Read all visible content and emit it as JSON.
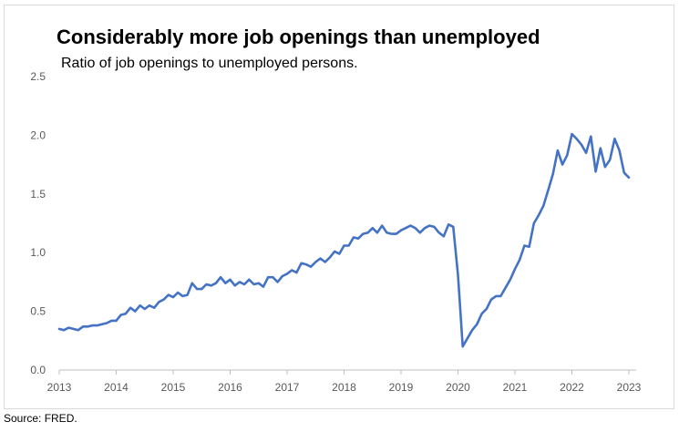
{
  "chart_data": {
    "type": "line",
    "title": "Considerably more job openings than unemployed",
    "subtitle": "Ratio of job openings to unemployed persons.",
    "source": "Source: FRED.",
    "xlabel": "",
    "ylabel": "",
    "ylim": [
      0,
      2.5
    ],
    "yticks": [
      "0.0",
      "0.5",
      "1.0",
      "1.5",
      "2.0",
      "2.5"
    ],
    "xticks": [
      "2013",
      "2014",
      "2015",
      "2016",
      "2017",
      "2018",
      "2019",
      "2020",
      "2021",
      "2022",
      "2023"
    ],
    "grid": false,
    "line_color": "#4472c4",
    "x": [
      2013.0,
      2013.083,
      2013.167,
      2013.25,
      2013.333,
      2013.417,
      2013.5,
      2013.583,
      2013.667,
      2013.75,
      2013.833,
      2013.917,
      2014.0,
      2014.083,
      2014.167,
      2014.25,
      2014.333,
      2014.417,
      2014.5,
      2014.583,
      2014.667,
      2014.75,
      2014.833,
      2014.917,
      2015.0,
      2015.083,
      2015.167,
      2015.25,
      2015.333,
      2015.417,
      2015.5,
      2015.583,
      2015.667,
      2015.75,
      2015.833,
      2015.917,
      2016.0,
      2016.083,
      2016.167,
      2016.25,
      2016.333,
      2016.417,
      2016.5,
      2016.583,
      2016.667,
      2016.75,
      2016.833,
      2016.917,
      2017.0,
      2017.083,
      2017.167,
      2017.25,
      2017.333,
      2017.417,
      2017.5,
      2017.583,
      2017.667,
      2017.75,
      2017.833,
      2017.917,
      2018.0,
      2018.083,
      2018.167,
      2018.25,
      2018.333,
      2018.417,
      2018.5,
      2018.583,
      2018.667,
      2018.75,
      2018.833,
      2018.917,
      2019.0,
      2019.083,
      2019.167,
      2019.25,
      2019.333,
      2019.417,
      2019.5,
      2019.583,
      2019.667,
      2019.75,
      2019.833,
      2019.917,
      2020.0,
      2020.083,
      2020.167,
      2020.25,
      2020.333,
      2020.417,
      2020.5,
      2020.583,
      2020.667,
      2020.75,
      2020.833,
      2020.917,
      2021.0,
      2021.083,
      2021.167,
      2021.25,
      2021.333,
      2021.417,
      2021.5,
      2021.583,
      2021.667,
      2021.75,
      2021.833,
      2021.917,
      2022.0,
      2022.083,
      2022.167,
      2022.25,
      2022.333,
      2022.417,
      2022.5,
      2022.583,
      2022.667,
      2022.75,
      2022.833,
      2022.917,
      2023.0
    ],
    "y": [
      0.35,
      0.34,
      0.36,
      0.35,
      0.34,
      0.37,
      0.37,
      0.38,
      0.38,
      0.39,
      0.4,
      0.42,
      0.42,
      0.47,
      0.48,
      0.53,
      0.5,
      0.55,
      0.52,
      0.55,
      0.53,
      0.58,
      0.6,
      0.64,
      0.62,
      0.66,
      0.63,
      0.64,
      0.74,
      0.69,
      0.69,
      0.73,
      0.72,
      0.74,
      0.79,
      0.74,
      0.77,
      0.72,
      0.75,
      0.73,
      0.77,
      0.73,
      0.74,
      0.71,
      0.79,
      0.79,
      0.75,
      0.8,
      0.82,
      0.85,
      0.83,
      0.91,
      0.9,
      0.88,
      0.92,
      0.95,
      0.92,
      0.96,
      1.01,
      0.99,
      1.06,
      1.06,
      1.13,
      1.12,
      1.16,
      1.17,
      1.21,
      1.17,
      1.23,
      1.17,
      1.16,
      1.16,
      1.19,
      1.21,
      1.23,
      1.21,
      1.17,
      1.21,
      1.23,
      1.22,
      1.17,
      1.14,
      1.24,
      1.22,
      0.81,
      0.2,
      0.27,
      0.34,
      0.39,
      0.48,
      0.52,
      0.6,
      0.63,
      0.63,
      0.7,
      0.77,
      0.86,
      0.94,
      1.06,
      1.05,
      1.25,
      1.32,
      1.4,
      1.53,
      1.67,
      1.87,
      1.75,
      1.83,
      2.01,
      1.97,
      1.92,
      1.85,
      1.99,
      1.69,
      1.89,
      1.73,
      1.79,
      1.97,
      1.87,
      1.68,
      1.64
    ]
  }
}
